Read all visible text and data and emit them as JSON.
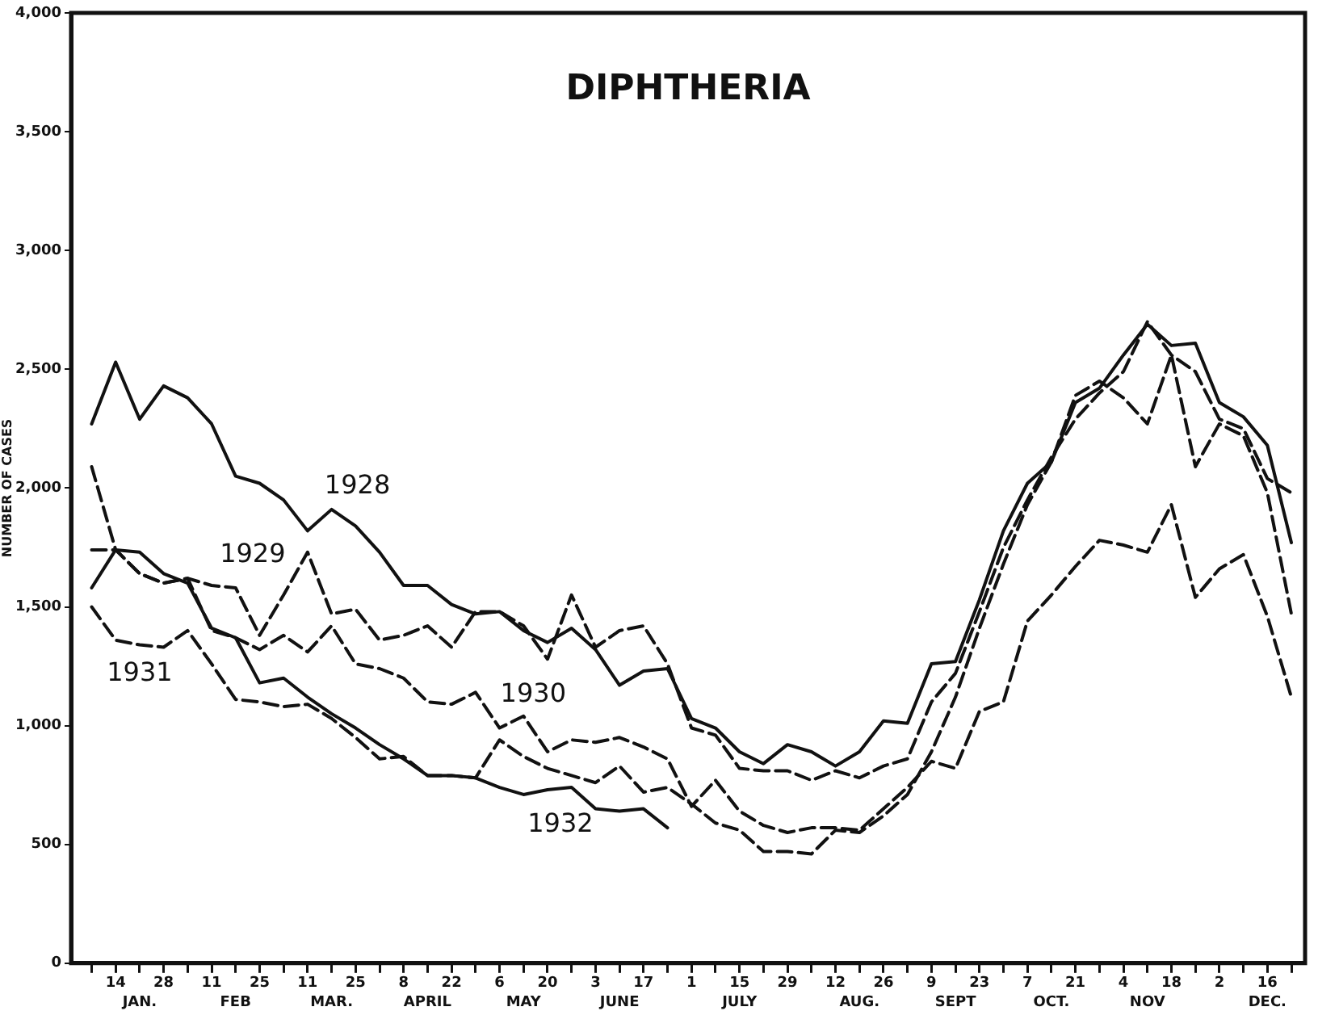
{
  "chart_data": {
    "type": "line",
    "title": "DIPHTHERIA",
    "ylabel": "NUMBER OF CASES",
    "x": [
      "--01-07",
      "--01-14",
      "--01-21",
      "--01-28",
      "--02-04",
      "--02-11",
      "--02-18",
      "--02-25",
      "--03-04",
      "--03-11",
      "--03-18",
      "--03-25",
      "--04-01",
      "--04-08",
      "--04-15",
      "--04-22",
      "--04-29",
      "--05-06",
      "--05-13",
      "--05-20",
      "--05-27",
      "--06-03",
      "--06-10",
      "--06-17",
      "--06-24",
      "--07-01",
      "--07-08",
      "--07-15",
      "--07-22",
      "--07-29",
      "--08-05",
      "--08-12",
      "--08-19",
      "--08-26",
      "--09-02",
      "--09-09",
      "--09-16",
      "--09-23",
      "--09-30",
      "--10-07",
      "--10-14",
      "--10-21",
      "--10-28",
      "--11-04",
      "--11-11",
      "--11-18",
      "--11-25",
      "--12-02",
      "--12-09",
      "--12-16",
      "--12-23"
    ],
    "series": [
      {
        "name": "1928",
        "color": "#111111",
        "line_style": "solid",
        "values": [
          2270,
          2530,
          2290,
          2430,
          2380,
          2270,
          2050,
          2020,
          1950,
          1820,
          1910,
          1840,
          1730,
          1590,
          1590,
          1510,
          1470,
          1480,
          1400,
          1350,
          1410,
          1320,
          1170,
          1230,
          1240,
          1030,
          990,
          890,
          840,
          920,
          890,
          830,
          890,
          1020,
          1010,
          1260,
          1270,
          1530,
          1820,
          2020,
          2110,
          2360,
          2420,
          2560,
          2690,
          2600,
          2610,
          2360,
          2300,
          2180,
          1770
        ]
      },
      {
        "name": "1929",
        "color": "#111111",
        "line_style": "dashed",
        "values": [
          1740,
          1740,
          1640,
          1600,
          1620,
          1590,
          1580,
          1380,
          1550,
          1730,
          1470,
          1490,
          1360,
          1380,
          1420,
          1330,
          1480,
          1480,
          1420,
          1280,
          1550,
          1330,
          1400,
          1420,
          1260,
          990,
          960,
          820,
          810,
          810,
          770,
          810,
          780,
          830,
          860,
          1100,
          1220,
          1480,
          1750,
          1950,
          2130,
          2290,
          2400,
          2490,
          2700,
          2560,
          2490,
          2290,
          2250,
          2040,
          1980
        ]
      },
      {
        "name": "1930",
        "color": "#111111",
        "line_style": "dashed",
        "values": [
          2090,
          1740,
          1640,
          1600,
          1620,
          1400,
          1370,
          1320,
          1380,
          1310,
          1420,
          1260,
          1240,
          1200,
          1100,
          1090,
          1140,
          990,
          1040,
          890,
          940,
          930,
          950,
          910,
          860,
          660,
          770,
          640,
          580,
          550,
          570,
          570,
          560,
          650,
          740,
          850,
          820,
          1060,
          1100,
          1440,
          1550,
          1670,
          1780,
          1760,
          1730,
          1930,
          1540,
          1660,
          1720,
          1460,
          1120
        ]
      },
      {
        "name": "1931",
        "color": "#111111",
        "line_style": "dashed",
        "values": [
          1500,
          1360,
          1340,
          1330,
          1400,
          1260,
          1110,
          1100,
          1080,
          1090,
          1030,
          950,
          860,
          870,
          790,
          790,
          780,
          940,
          870,
          820,
          790,
          760,
          830,
          720,
          740,
          670,
          590,
          560,
          470,
          470,
          460,
          560,
          550,
          620,
          710,
          890,
          1120,
          1410,
          1680,
          1930,
          2110,
          2390,
          2450,
          2380,
          2270,
          2560,
          2090,
          2270,
          2220,
          1980,
          1470
        ]
      },
      {
        "name": "1932",
        "color": "#111111",
        "line_style": "solid",
        "x": [
          "--01-07",
          "--01-14",
          "--01-21",
          "--01-28",
          "--02-04",
          "--02-11",
          "--02-18",
          "--02-25",
          "--03-04",
          "--03-11",
          "--03-18",
          "--03-25",
          "--04-01",
          "--04-08",
          "--04-15",
          "--04-22",
          "--04-29",
          "--05-06",
          "--05-13",
          "--05-20",
          "--05-27",
          "--06-03",
          "--06-10",
          "--06-17",
          "--06-24"
        ],
        "values": [
          1580,
          1740,
          1730,
          1640,
          1600,
          1410,
          1370,
          1180,
          1200,
          1120,
          1050,
          990,
          920,
          860,
          790,
          790,
          780,
          740,
          710,
          730,
          740,
          650,
          640,
          650,
          570
        ]
      }
    ],
    "xlim": [
      "--01-01",
      "--12-27"
    ],
    "xticks": [
      {
        "value": "--01-07",
        "label": null
      },
      {
        "value": "--01-14",
        "label": "14"
      },
      {
        "value": "--01-21",
        "label": null
      },
      {
        "value": "--01-28",
        "label": "28"
      },
      {
        "value": "--02-04",
        "label": null
      },
      {
        "value": "--02-11",
        "label": "11"
      },
      {
        "value": "--02-18",
        "label": null
      },
      {
        "value": "--02-25",
        "label": "25"
      },
      {
        "value": "--03-04",
        "label": null
      },
      {
        "value": "--03-11",
        "label": "11"
      },
      {
        "value": "--03-18",
        "label": null
      },
      {
        "value": "--03-25",
        "label": "25"
      },
      {
        "value": "--04-01",
        "label": null
      },
      {
        "value": "--04-08",
        "label": "8"
      },
      {
        "value": "--04-15",
        "label": null
      },
      {
        "value": "--04-22",
        "label": "22"
      },
      {
        "value": "--04-29",
        "label": null
      },
      {
        "value": "--05-06",
        "label": "6"
      },
      {
        "value": "--05-13",
        "label": null
      },
      {
        "value": "--05-20",
        "label": "20"
      },
      {
        "value": "--05-27",
        "label": null
      },
      {
        "value": "--06-03",
        "label": "3"
      },
      {
        "value": "--06-10",
        "label": null
      },
      {
        "value": "--06-17",
        "label": "17"
      },
      {
        "value": "--06-24",
        "label": null
      },
      {
        "value": "--07-01",
        "label": "1"
      },
      {
        "value": "--07-08",
        "label": null
      },
      {
        "value": "--07-15",
        "label": "15"
      },
      {
        "value": "--07-22",
        "label": null
      },
      {
        "value": "--07-29",
        "label": "29"
      },
      {
        "value": "--08-05",
        "label": null
      },
      {
        "value": "--08-12",
        "label": "12"
      },
      {
        "value": "--08-19",
        "label": null
      },
      {
        "value": "--08-26",
        "label": "26"
      },
      {
        "value": "--09-02",
        "label": null
      },
      {
        "value": "--09-09",
        "label": "9"
      },
      {
        "value": "--09-16",
        "label": null
      },
      {
        "value": "--09-23",
        "label": "23"
      },
      {
        "value": "--09-30",
        "label": null
      },
      {
        "value": "--10-07",
        "label": "7"
      },
      {
        "value": "--10-14",
        "label": null
      },
      {
        "value": "--10-21",
        "label": "21"
      },
      {
        "value": "--10-28",
        "label": null
      },
      {
        "value": "--11-04",
        "label": "4"
      },
      {
        "value": "--11-11",
        "label": null
      },
      {
        "value": "--11-18",
        "label": "18"
      },
      {
        "value": "--11-25",
        "label": null
      },
      {
        "value": "--12-02",
        "label": "2"
      },
      {
        "value": "--12-09",
        "label": null
      },
      {
        "value": "--12-16",
        "label": "16"
      },
      {
        "value": "--12-23",
        "label": null
      }
    ],
    "x2lim": [
      "--01-01",
      "--12-27"
    ],
    "x2ticks": [
      {
        "value": "--01-21",
        "label": "JAN."
      },
      {
        "value": "--02-18",
        "label": "FEB"
      },
      {
        "value": "--03-18",
        "label": "MAR."
      },
      {
        "value": "--04-15",
        "label": "APRIL"
      },
      {
        "value": "--05-13",
        "label": "MAY"
      },
      {
        "value": "--06-10",
        "label": "JUNE"
      },
      {
        "value": "--07-15",
        "label": "JULY"
      },
      {
        "value": "--08-19",
        "label": "AUG."
      },
      {
        "value": "--09-16",
        "label": "SEPT"
      },
      {
        "value": "--10-14",
        "label": "OCT."
      },
      {
        "value": "--11-11",
        "label": "NOV"
      },
      {
        "value": "--12-16",
        "label": "DEC."
      }
    ],
    "ylim": [
      0,
      4000
    ],
    "yticks": [
      0,
      500,
      {
        "value": 1000,
        "label": "1,000"
      },
      {
        "value": 1500,
        "label": "1,500"
      },
      {
        "value": 2000,
        "label": "2,000"
      },
      {
        "value": 2500,
        "label": "2,500"
      },
      {
        "value": 3000,
        "label": "3,000"
      },
      {
        "value": 3500,
        "label": "3,500"
      },
      {
        "value": 4000,
        "label": "4,000"
      }
    ],
    "grid": false,
    "legend": false,
    "marker": "none"
  }
}
